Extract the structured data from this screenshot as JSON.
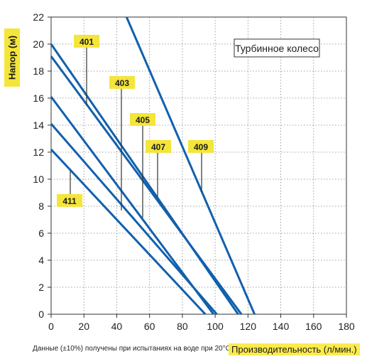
{
  "chart_data": {
    "type": "line",
    "ylabel": "Напор (м)",
    "xlabel": "Производительность (л/мин.)",
    "legend_box": "Турбинное колесо",
    "footnote": "Данные (±10%) получены при испытаниях на воде при 20°C.",
    "xlim": [
      0,
      180
    ],
    "ylim": [
      0,
      22
    ],
    "xticks": [
      0,
      20,
      40,
      60,
      80,
      100,
      120,
      140,
      160,
      180
    ],
    "yticks": [
      0,
      2,
      4,
      6,
      8,
      10,
      12,
      14,
      16,
      18,
      20,
      22
    ],
    "grid": "dotted",
    "series": [
      {
        "name": "401",
        "x": [
          0,
          114
        ],
        "y": [
          20,
          0
        ]
      },
      {
        "name": "403",
        "x": [
          0,
          116
        ],
        "y": [
          19.1,
          0
        ]
      },
      {
        "name": "405",
        "x": [
          0,
          99
        ],
        "y": [
          16.1,
          0
        ]
      },
      {
        "name": "407",
        "x": [
          0,
          101
        ],
        "y": [
          14.1,
          0
        ]
      },
      {
        "name": "409",
        "x": [
          46,
          124
        ],
        "y": [
          22,
          0
        ]
      },
      {
        "name": "411",
        "x": [
          0,
          94
        ],
        "y": [
          12.2,
          0
        ]
      }
    ],
    "series_color": "#1160ad",
    "label_color": "#f4e53a"
  }
}
